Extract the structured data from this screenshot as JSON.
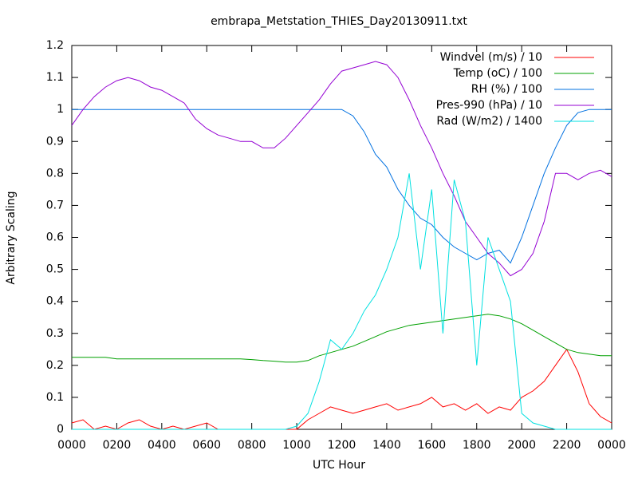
{
  "chart_data": {
    "type": "line",
    "title": "embrapa_Metstation_THIES_Day20130911.txt",
    "xlabel": "UTC Hour",
    "ylabel": "Arbitrary Scaling",
    "x": [
      0,
      0.5,
      1,
      1.5,
      2,
      2.5,
      3,
      3.5,
      4,
      4.5,
      5,
      5.5,
      6,
      6.5,
      7,
      7.5,
      8,
      8.5,
      9,
      9.5,
      10,
      10.5,
      11,
      11.5,
      12,
      12.5,
      13,
      13.5,
      14,
      14.5,
      15,
      15.5,
      16,
      16.5,
      17,
      17.5,
      18,
      18.5,
      19,
      19.5,
      20,
      20.5,
      21,
      21.5,
      22,
      22.5,
      23,
      23.5,
      24
    ],
    "xlim": [
      0,
      24
    ],
    "xticks": [
      {
        "value": 0,
        "label": "0000"
      },
      {
        "value": 2,
        "label": "0200"
      },
      {
        "value": 4,
        "label": "0400"
      },
      {
        "value": 6,
        "label": "0600"
      },
      {
        "value": 8,
        "label": "0800"
      },
      {
        "value": 10,
        "label": "1000"
      },
      {
        "value": 12,
        "label": "1200"
      },
      {
        "value": 14,
        "label": "1400"
      },
      {
        "value": 16,
        "label": "1600"
      },
      {
        "value": 18,
        "label": "1800"
      },
      {
        "value": 20,
        "label": "2000"
      },
      {
        "value": 22,
        "label": "2200"
      },
      {
        "value": 24,
        "label": "0000"
      }
    ],
    "ylim": [
      0,
      1.2
    ],
    "yticks": [
      0,
      0.1,
      0.2,
      0.3,
      0.4,
      0.5,
      0.6,
      0.7,
      0.8,
      0.9,
      1,
      1.1,
      1.2
    ],
    "legend": "top right",
    "series": [
      {
        "name": "Windvel (m/s) / 10",
        "color": "#ff0000",
        "values": [
          0.02,
          0.03,
          0.0,
          0.01,
          0.0,
          0.02,
          0.03,
          0.01,
          0.0,
          0.01,
          0.0,
          0.01,
          0.02,
          0.0,
          0.0,
          0.0,
          0.0,
          0.0,
          0.0,
          0.0,
          0.0,
          0.03,
          0.05,
          0.07,
          0.06,
          0.05,
          0.06,
          0.07,
          0.08,
          0.06,
          0.07,
          0.08,
          0.1,
          0.07,
          0.08,
          0.06,
          0.08,
          0.05,
          0.07,
          0.06,
          0.1,
          0.12,
          0.15,
          0.2,
          0.25,
          0.18,
          0.08,
          0.04,
          0.02
        ]
      },
      {
        "name": "Temp (oC) / 100",
        "color": "#00a000",
        "values": [
          0.225,
          0.225,
          0.225,
          0.225,
          0.22,
          0.22,
          0.22,
          0.22,
          0.22,
          0.22,
          0.22,
          0.22,
          0.22,
          0.22,
          0.22,
          0.22,
          0.218,
          0.215,
          0.213,
          0.21,
          0.21,
          0.215,
          0.23,
          0.24,
          0.25,
          0.26,
          0.275,
          0.29,
          0.305,
          0.315,
          0.325,
          0.33,
          0.335,
          0.34,
          0.345,
          0.35,
          0.355,
          0.36,
          0.355,
          0.345,
          0.33,
          0.31,
          0.29,
          0.27,
          0.25,
          0.24,
          0.235,
          0.23,
          0.23
        ]
      },
      {
        "name": "RH (%) / 100",
        "color": "#0070e0",
        "values": [
          1,
          1,
          1,
          1,
          1,
          1,
          1,
          1,
          1,
          1,
          1,
          1,
          1,
          1,
          1,
          1,
          1,
          1,
          1,
          1,
          1,
          1,
          1,
          1,
          1,
          0.98,
          0.93,
          0.86,
          0.82,
          0.75,
          0.7,
          0.66,
          0.64,
          0.6,
          0.57,
          0.55,
          0.53,
          0.55,
          0.56,
          0.52,
          0.6,
          0.7,
          0.8,
          0.88,
          0.95,
          0.99,
          1,
          1,
          1
        ]
      },
      {
        "name": "Pres-990 (hPa) / 10",
        "color": "#9400d3",
        "values": [
          0.95,
          1.0,
          1.04,
          1.07,
          1.09,
          1.1,
          1.09,
          1.07,
          1.06,
          1.04,
          1.02,
          0.97,
          0.94,
          0.92,
          0.91,
          0.9,
          0.9,
          0.88,
          0.88,
          0.91,
          0.95,
          0.99,
          1.03,
          1.08,
          1.12,
          1.13,
          1.14,
          1.15,
          1.14,
          1.1,
          1.03,
          0.95,
          0.88,
          0.8,
          0.73,
          0.65,
          0.6,
          0.55,
          0.52,
          0.48,
          0.5,
          0.55,
          0.65,
          0.8,
          0.8,
          0.78,
          0.8,
          0.81,
          0.79
        ]
      },
      {
        "name": "Rad (W/m2) / 1400",
        "color": "#00e0e0",
        "values": [
          0,
          0,
          0,
          0,
          0,
          0,
          0,
          0,
          0,
          0,
          0,
          0,
          0,
          0,
          0,
          0,
          0,
          0,
          0,
          0,
          0.01,
          0.05,
          0.15,
          0.28,
          0.25,
          0.3,
          0.37,
          0.42,
          0.5,
          0.6,
          0.8,
          0.5,
          0.75,
          0.3,
          0.78,
          0.65,
          0.2,
          0.6,
          0.5,
          0.4,
          0.05,
          0.02,
          0.01,
          0,
          0,
          0,
          0,
          0,
          0
        ]
      }
    ]
  }
}
